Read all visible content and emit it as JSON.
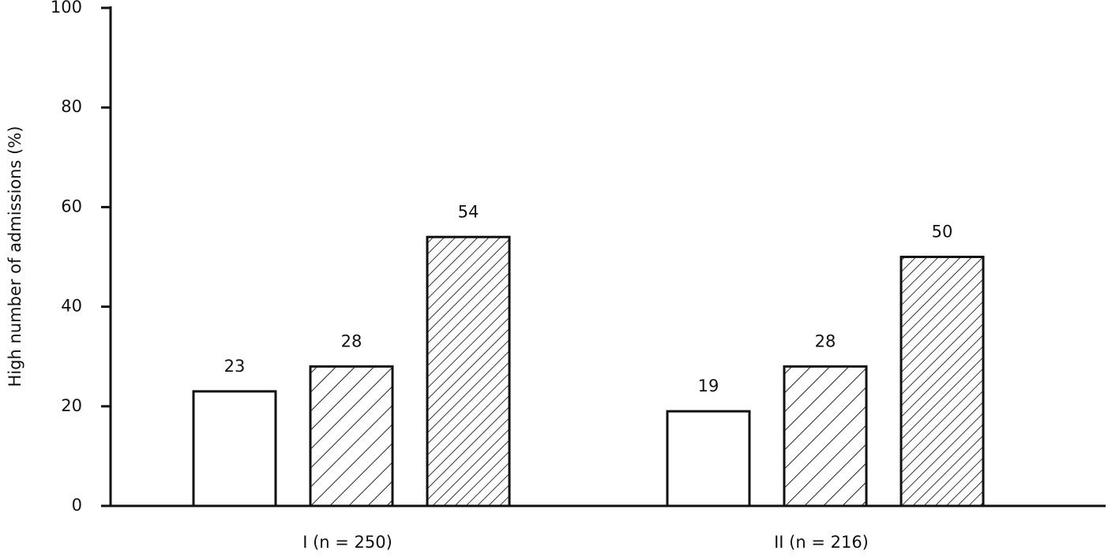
{
  "chart_data": {
    "type": "bar",
    "ylabel": "High number of admissions (%)",
    "categories": [
      "I (n = 250)",
      "II (n = 216)"
    ],
    "series": [
      {
        "color": "#ffffff",
        "hatch": "none",
        "values": [
          23,
          19
        ]
      },
      {
        "color": "#ffffff",
        "hatch": "sparse",
        "values": [
          28,
          28
        ]
      },
      {
        "color": "#ffffff",
        "hatch": "dense",
        "values": [
          54,
          50
        ]
      }
    ],
    "ylim": [
      0,
      100
    ],
    "yticks": [
      0,
      20,
      40,
      60,
      80,
      100
    ],
    "grid": false
  }
}
